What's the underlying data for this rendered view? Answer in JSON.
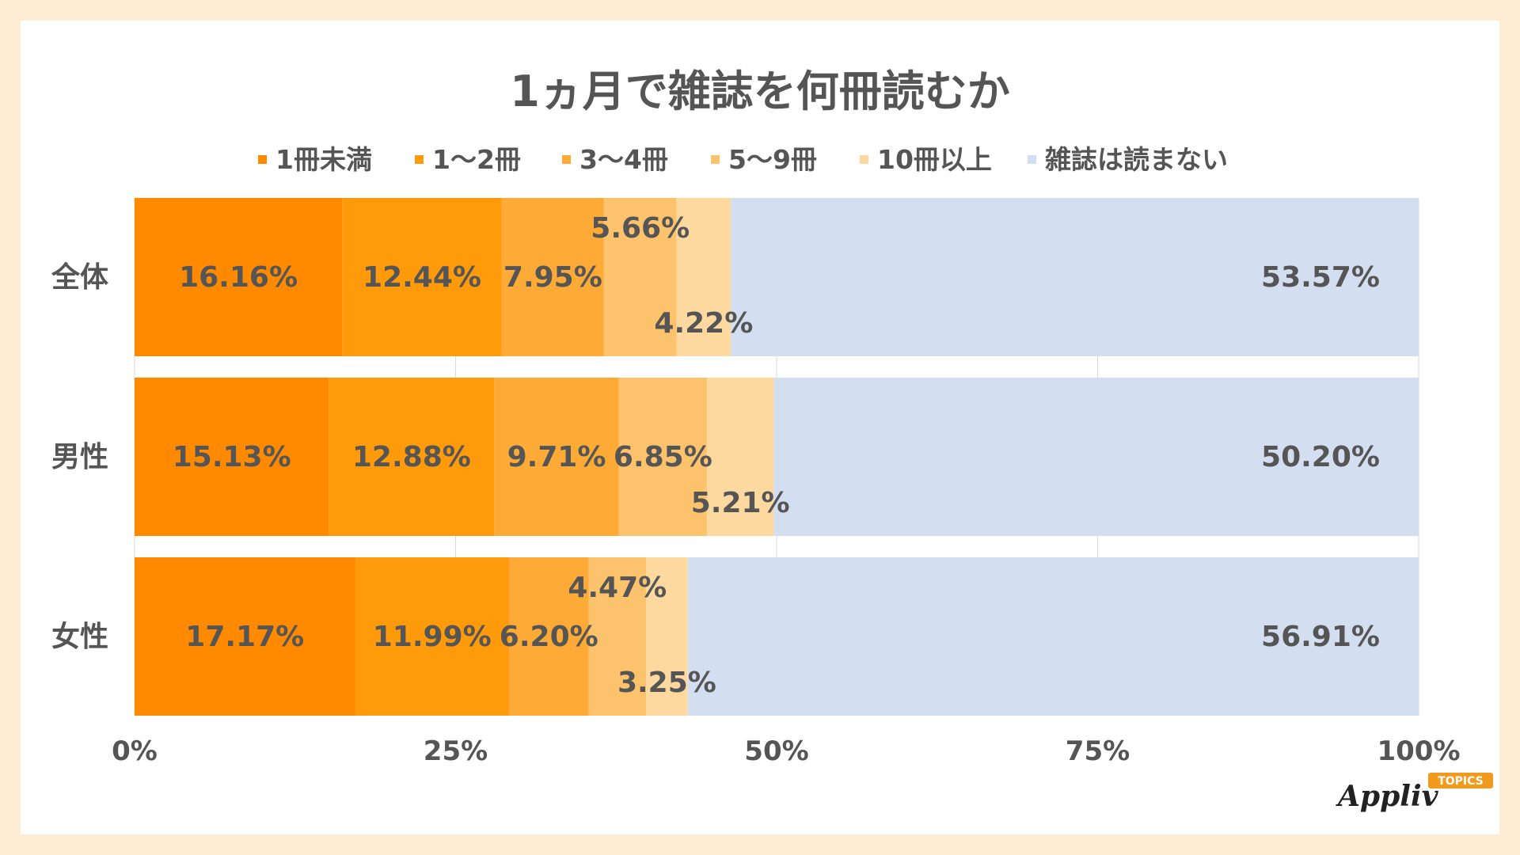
{
  "chart_data": {
    "type": "bar",
    "orientation": "horizontal",
    "stacked": true,
    "title": "1ヵ月で雑誌を何冊読むか",
    "categories": [
      "全体",
      "男性",
      "女性"
    ],
    "series": [
      {
        "name": "1冊未満",
        "color": "#ff8a00",
        "values": [
          16.16,
          15.13,
          17.17
        ],
        "labels": [
          "16.16%",
          "15.13%",
          "17.17%"
        ]
      },
      {
        "name": "1〜2冊",
        "color": "#ff9a0a",
        "values": [
          12.44,
          12.88,
          11.99
        ],
        "labels": [
          "12.44%",
          "12.88%",
          "11.99%"
        ]
      },
      {
        "name": "3〜4冊",
        "color": "#fdab36",
        "values": [
          7.95,
          9.71,
          6.2
        ],
        "labels": [
          "7.95%",
          "9.71%",
          "6.20%"
        ]
      },
      {
        "name": "5〜9冊",
        "color": "#fdc26c",
        "values": [
          5.66,
          6.85,
          4.47
        ],
        "labels": [
          "5.66%",
          "6.85%",
          "4.47%"
        ]
      },
      {
        "name": "10冊以上",
        "color": "#fdd9a0",
        "values": [
          4.22,
          5.21,
          3.25
        ],
        "labels": [
          "4.22%",
          "5.21%",
          "3.25%"
        ]
      },
      {
        "name": "雑誌は読まない",
        "color": "#d3dff0",
        "values": [
          53.57,
          50.2,
          56.91
        ],
        "labels": [
          "53.57%",
          "50.20%",
          "56.91%"
        ]
      }
    ],
    "xlim": [
      0,
      100
    ],
    "xticks": [
      0,
      25,
      50,
      75,
      100
    ],
    "xtick_labels": [
      "0%",
      "25%",
      "50%",
      "75%",
      "100%"
    ],
    "grid": true,
    "legend_position": "top"
  },
  "branding": {
    "logo_text": "Appliv",
    "logo_badge": "TOPICS"
  }
}
